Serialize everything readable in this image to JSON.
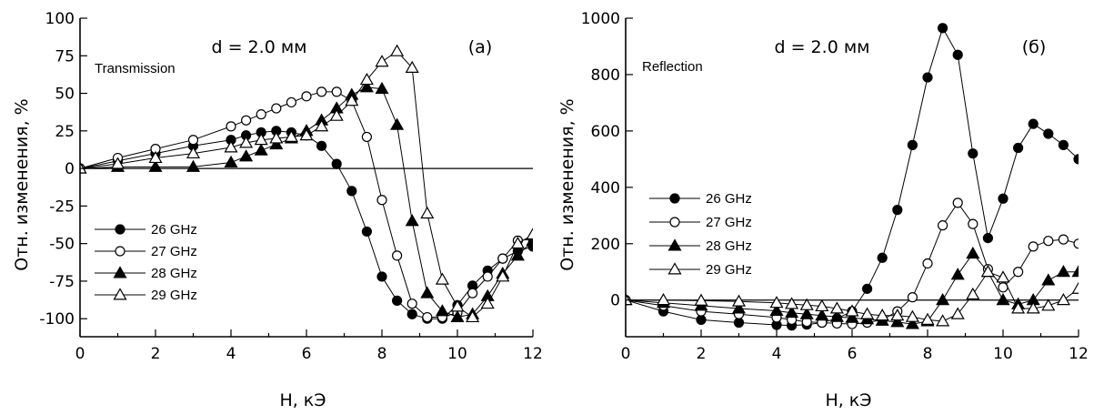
{
  "chart_data": [
    {
      "type": "line",
      "panel_label": "(a)",
      "annotation": "d = 2.0 мм",
      "mode_label": "Transmission",
      "xlabel": "H, кЭ",
      "ylabel": "Отн. изменения, %",
      "xlim": [
        0,
        12
      ],
      "ylim": [
        -112,
        100
      ],
      "xticks": [
        0,
        2,
        4,
        6,
        8,
        10,
        12
      ],
      "xtick_labels": [
        "0",
        "2",
        "4",
        "6",
        "8",
        "10",
        "12"
      ],
      "yticks": [
        100,
        75,
        50,
        25,
        0,
        -25,
        -50,
        -75,
        -100
      ],
      "ytick_labels": [
        "100",
        "75",
        "50",
        "25",
        "0",
        "-25",
        "-50",
        "-75",
        "-100"
      ],
      "zero_line": true,
      "legend_position": "lower-left",
      "series": [
        {
          "name": "26 GHz",
          "marker": "filled-circle",
          "x": [
            0,
            1,
            2,
            3,
            4,
            4.4,
            4.8,
            5.2,
            5.6,
            6,
            6.4,
            6.8,
            7.2,
            7.6,
            8,
            8.4,
            8.8,
            9.2,
            9.6,
            10,
            10.4,
            10.8,
            11.2,
            11.6,
            12
          ],
          "y": [
            0,
            5,
            10,
            15,
            19,
            22,
            24,
            25,
            24,
            22,
            15,
            3,
            -15,
            -42,
            -72,
            -88,
            -97,
            -100,
            -100,
            -91,
            -78,
            -68,
            -60,
            -55,
            -52
          ]
        },
        {
          "name": "27 GHz",
          "marker": "open-circle",
          "x": [
            0,
            1,
            2,
            3,
            4,
            4.4,
            4.8,
            5.2,
            5.6,
            6,
            6.4,
            6.8,
            7.2,
            7.6,
            8,
            8.4,
            8.8,
            9.2,
            9.6,
            10,
            10.4,
            10.8,
            11.2,
            11.6,
            12
          ],
          "y": [
            0,
            7,
            13,
            19,
            28,
            32,
            36,
            40,
            44,
            48,
            51,
            51,
            45,
            21,
            -21,
            -58,
            -90,
            -99,
            -99,
            -96,
            -83,
            -72,
            -60,
            -48,
            -47
          ]
        },
        {
          "name": "28 GHz",
          "marker": "filled-triangle",
          "x": [
            0,
            1,
            2,
            3,
            4,
            4.4,
            4.8,
            5.2,
            5.6,
            6,
            6.4,
            6.8,
            7.2,
            7.6,
            8,
            8.4,
            8.8,
            9.2,
            9.6,
            10,
            10.4,
            10.8,
            11.2,
            11.6,
            12
          ],
          "y": [
            0,
            1,
            1,
            1,
            4,
            8,
            12,
            16,
            20,
            25,
            32,
            40,
            49,
            54,
            53,
            29,
            -35,
            -83,
            -95,
            -99,
            -97,
            -85,
            -70,
            -58,
            -48
          ]
        },
        {
          "name": "29 GHz",
          "marker": "open-triangle",
          "x": [
            0,
            1,
            2,
            3,
            4,
            4.4,
            4.8,
            5.2,
            5.6,
            6,
            6.4,
            6.8,
            7.2,
            7.6,
            8,
            8.4,
            8.8,
            9.2,
            9.6,
            10,
            10.4,
            10.8,
            11.2,
            11.6,
            12
          ],
          "y": [
            0,
            3,
            7,
            10,
            14,
            17,
            19,
            20,
            21,
            22,
            28,
            35,
            45,
            59,
            71,
            78,
            67,
            -30,
            -74,
            -92,
            -99,
            -90,
            -72,
            -50,
            -44
          ]
        }
      ]
    },
    {
      "type": "line",
      "panel_label": "(б)",
      "annotation": "d = 2.0 мм",
      "mode_label": "Reflection",
      "xlabel": "H, кЭ",
      "ylabel": "Отн. изменения, %",
      "xlim": [
        0,
        12
      ],
      "ylim": [
        -130,
        1000
      ],
      "xticks": [
        0,
        2,
        4,
        6,
        8,
        10,
        12
      ],
      "xtick_labels": [
        "0",
        "2",
        "4",
        "6",
        "8",
        "10",
        "12"
      ],
      "yticks": [
        1000,
        800,
        600,
        400,
        200,
        0
      ],
      "ytick_labels": [
        "1000",
        "800",
        "600",
        "400",
        "200",
        "0"
      ],
      "zero_line": true,
      "legend_position": "middle-left",
      "series": [
        {
          "name": "26 GHz",
          "marker": "filled-circle",
          "x": [
            0,
            1,
            2,
            3,
            4,
            4.4,
            4.8,
            5.2,
            5.6,
            6,
            6.4,
            6.8,
            7.2,
            7.6,
            8,
            8.4,
            8.8,
            9.2,
            9.6,
            10,
            10.4,
            10.8,
            11.2,
            11.6,
            12
          ],
          "y": [
            0,
            -40,
            -70,
            -80,
            -88,
            -90,
            -87,
            -80,
            -65,
            -40,
            40,
            150,
            320,
            550,
            790,
            965,
            870,
            520,
            220,
            360,
            540,
            625,
            590,
            550,
            500
          ]
        },
        {
          "name": "27 GHz",
          "marker": "open-circle",
          "x": [
            0,
            1,
            2,
            3,
            4,
            4.4,
            4.8,
            5.2,
            5.6,
            6,
            6.4,
            6.8,
            7.2,
            7.6,
            8,
            8.4,
            8.8,
            9.2,
            9.6,
            10,
            10.4,
            10.8,
            11.2,
            11.6,
            12
          ],
          "y": [
            0,
            -20,
            -40,
            -50,
            -62,
            -70,
            -77,
            -80,
            -83,
            -85,
            -80,
            -70,
            -40,
            10,
            130,
            265,
            345,
            270,
            110,
            45,
            100,
            190,
            210,
            215,
            200
          ]
        },
        {
          "name": "28 GHz",
          "marker": "filled-triangle",
          "x": [
            0,
            1,
            2,
            3,
            4,
            4.4,
            4.8,
            5.2,
            5.6,
            6,
            6.4,
            6.8,
            7.2,
            7.6,
            8,
            8.4,
            8.8,
            9.2,
            9.6,
            10,
            10.4,
            10.8,
            11.2,
            11.6,
            12
          ],
          "y": [
            0,
            -10,
            -20,
            -30,
            -38,
            -45,
            -50,
            -55,
            -60,
            -63,
            -68,
            -73,
            -78,
            -85,
            -75,
            0,
            90,
            165,
            100,
            0,
            -15,
            0,
            70,
            100,
            100
          ]
        },
        {
          "name": "29 GHz",
          "marker": "open-triangle",
          "x": [
            0,
            1,
            2,
            3,
            4,
            4.4,
            4.8,
            5.2,
            5.6,
            6,
            6.4,
            6.8,
            7.2,
            7.6,
            8,
            8.4,
            8.8,
            9.2,
            9.6,
            10,
            10.4,
            10.8,
            11.2,
            11.6,
            12
          ],
          "y": [
            0,
            0,
            -2,
            -5,
            -10,
            -14,
            -18,
            -22,
            -30,
            -40,
            -50,
            -55,
            -55,
            -60,
            -70,
            -75,
            -50,
            20,
            100,
            80,
            -30,
            -30,
            -20,
            0,
            40
          ]
        }
      ]
    }
  ]
}
